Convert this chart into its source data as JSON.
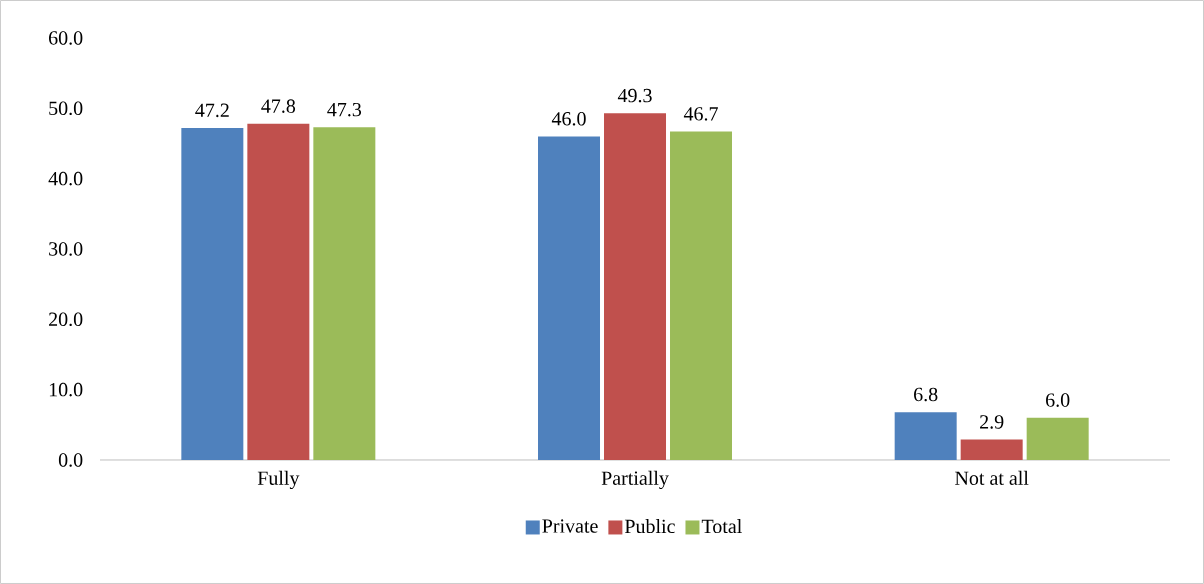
{
  "chart_data": {
    "type": "bar",
    "categories": [
      "Fully",
      "Partially",
      "Not at all"
    ],
    "series": [
      {
        "name": "Private",
        "color": "#4f81bd",
        "values": [
          47.2,
          46.0,
          6.8
        ],
        "value_labels": [
          "47.2",
          "46.0",
          "6.8"
        ]
      },
      {
        "name": "Public",
        "color": "#c0504d",
        "values": [
          47.8,
          49.3,
          2.9
        ],
        "value_labels": [
          "47.8",
          "49.3",
          "2.9"
        ]
      },
      {
        "name": "Total",
        "color": "#9bbb59",
        "values": [
          47.3,
          46.7,
          6.0
        ],
        "value_labels": [
          "47.3",
          "46.7",
          "6.0"
        ]
      }
    ],
    "ylim": [
      0,
      60
    ],
    "yticks": [
      {
        "value": 0,
        "label": "0.0"
      },
      {
        "value": 10,
        "label": "10.0"
      },
      {
        "value": 20,
        "label": "20.0"
      },
      {
        "value": 30,
        "label": "30.0"
      },
      {
        "value": 40,
        "label": "40.0"
      },
      {
        "value": 50,
        "label": "50.0"
      },
      {
        "value": 60,
        "label": "60.0"
      }
    ],
    "grid": false,
    "legend": "bottom"
  }
}
